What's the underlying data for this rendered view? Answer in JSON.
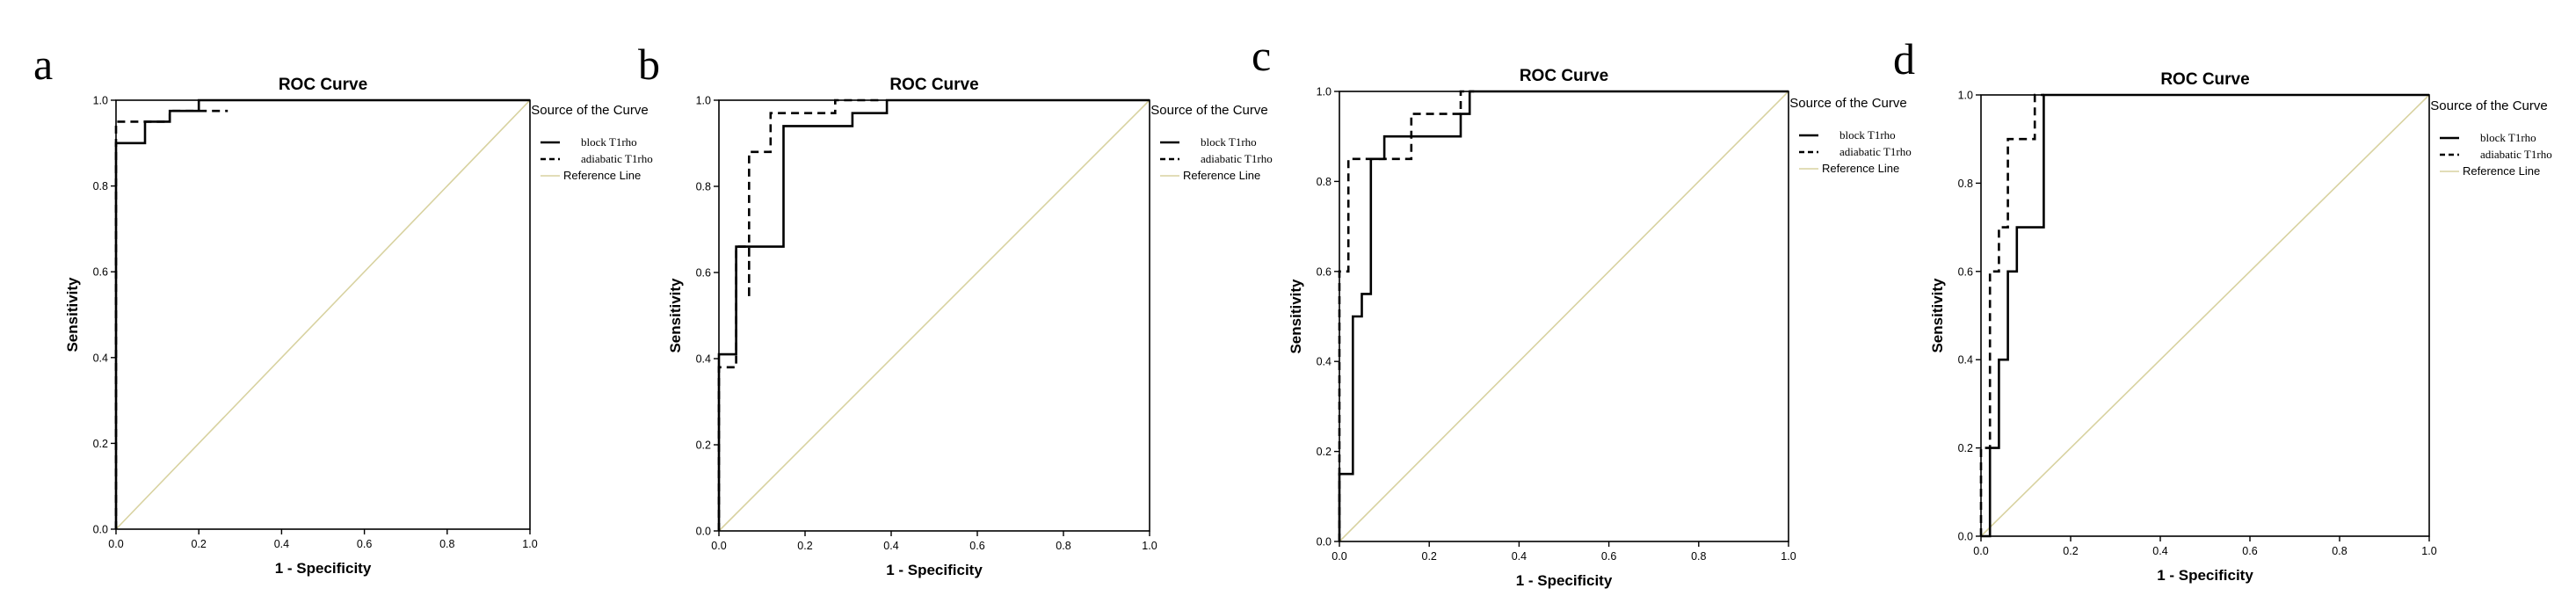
{
  "chart_data": [
    {
      "panel": "a",
      "type": "line",
      "title": "ROC Curve",
      "xlabel": "1 - Specificity",
      "ylabel": "Sensitivity",
      "xlim": [
        0,
        1
      ],
      "ylim": [
        0,
        1
      ],
      "xticks": [
        "0.0",
        "0.2",
        "0.4",
        "0.6",
        "0.8",
        "1.0"
      ],
      "yticks": [
        "0.0",
        "0.2",
        "0.4",
        "0.6",
        "0.8",
        "1.0"
      ],
      "legend": {
        "title": "Source of the Curve",
        "entries": [
          "block T1rho",
          "adiabatic T1rho",
          "Reference Line"
        ],
        "position": "right"
      },
      "series": [
        {
          "name": "block T1rho",
          "style": "solid",
          "points": [
            [
              0,
              0
            ],
            [
              0,
              0.9
            ],
            [
              0.07,
              0.9
            ],
            [
              0.07,
              0.95
            ],
            [
              0.13,
              0.95
            ],
            [
              0.13,
              0.975
            ],
            [
              0.2,
              0.975
            ],
            [
              0.2,
              1.0
            ],
            [
              1.0,
              1.0
            ]
          ]
        },
        {
          "name": "adiabatic T1rho",
          "style": "dashed",
          "points": [
            [
              0,
              0
            ],
            [
              0,
              0.95
            ],
            [
              0.13,
              0.95
            ],
            [
              0.13,
              0.975
            ],
            [
              0.27,
              0.975
            ]
          ]
        },
        {
          "name": "Reference Line",
          "style": "reference",
          "points": [
            [
              0,
              0
            ],
            [
              1,
              1
            ]
          ]
        }
      ]
    },
    {
      "panel": "b",
      "type": "line",
      "title": "ROC Curve",
      "xlabel": "1 - Specificity",
      "ylabel": "Sensitivity",
      "xlim": [
        0,
        1
      ],
      "ylim": [
        0,
        1
      ],
      "xticks": [
        "0.0",
        "0.2",
        "0.4",
        "0.6",
        "0.8",
        "1.0"
      ],
      "yticks": [
        "0.0",
        "0.2",
        "0.4",
        "0.6",
        "0.8",
        "1.0"
      ],
      "legend": {
        "title": "Source of the Curve",
        "entries": [
          "block T1rho",
          "adiabatic T1rho",
          "Reference Line"
        ],
        "position": "right"
      },
      "series": [
        {
          "name": "block T1rho",
          "style": "solid",
          "points": [
            [
              0,
              0
            ],
            [
              0,
              0.41
            ],
            [
              0.04,
              0.41
            ],
            [
              0.04,
              0.66
            ],
            [
              0.15,
              0.66
            ],
            [
              0.15,
              0.94
            ],
            [
              0.31,
              0.94
            ],
            [
              0.31,
              0.97
            ],
            [
              0.39,
              0.97
            ],
            [
              0.39,
              1.0
            ],
            [
              1.0,
              1.0
            ]
          ]
        },
        {
          "name": "adiabatic T1rho",
          "style": "dashed",
          "points": [
            [
              0,
              0
            ],
            [
              0,
              0.38
            ],
            [
              0.04,
              0.38
            ],
            [
              0.04,
              0.66
            ],
            [
              0.07,
              0.66
            ],
            [
              0.07,
              0.54
            ],
            [
              0.07,
              0.88
            ],
            [
              0.12,
              0.88
            ],
            [
              0.12,
              0.97
            ],
            [
              0.27,
              0.97
            ],
            [
              0.27,
              1.0
            ],
            [
              0.38,
              1.0
            ]
          ]
        },
        {
          "name": "Reference Line",
          "style": "reference",
          "points": [
            [
              0,
              0
            ],
            [
              1,
              1
            ]
          ]
        }
      ]
    },
    {
      "panel": "c",
      "type": "line",
      "title": "ROC Curve",
      "xlabel": "1 - Specificity",
      "ylabel": "Sensitivity",
      "xlim": [
        0,
        1
      ],
      "ylim": [
        0,
        1
      ],
      "xticks": [
        "0.0",
        "0.2",
        "0.4",
        "0.6",
        "0.8",
        "1.0"
      ],
      "yticks": [
        "0.0",
        "0.2",
        "0.4",
        "0.6",
        "0.8",
        "1.0"
      ],
      "legend": {
        "title": "Source of the Curve",
        "entries": [
          "block T1rho",
          "adiabatic T1rho",
          "Reference Line"
        ],
        "position": "right"
      },
      "series": [
        {
          "name": "block T1rho",
          "style": "solid",
          "points": [
            [
              0,
              0
            ],
            [
              0,
              0.15
            ],
            [
              0.03,
              0.15
            ],
            [
              0.03,
              0.5
            ],
            [
              0.05,
              0.5
            ],
            [
              0.05,
              0.55
            ],
            [
              0.07,
              0.55
            ],
            [
              0.07,
              0.85
            ],
            [
              0.1,
              0.85
            ],
            [
              0.1,
              0.9
            ],
            [
              0.27,
              0.9
            ],
            [
              0.27,
              0.95
            ],
            [
              0.29,
              0.95
            ],
            [
              0.29,
              1.0
            ],
            [
              1.0,
              1.0
            ]
          ]
        },
        {
          "name": "adiabatic T1rho",
          "style": "dashed",
          "points": [
            [
              0,
              0
            ],
            [
              0,
              0.6
            ],
            [
              0.02,
              0.6
            ],
            [
              0.02,
              0.85
            ],
            [
              0.1,
              0.85
            ],
            [
              0.16,
              0.85
            ],
            [
              0.16,
              0.95
            ],
            [
              0.27,
              0.95
            ],
            [
              0.27,
              1.0
            ],
            [
              0.3,
              1.0
            ]
          ]
        },
        {
          "name": "Reference Line",
          "style": "reference",
          "points": [
            [
              0,
              0
            ],
            [
              1,
              1
            ]
          ]
        }
      ]
    },
    {
      "panel": "d",
      "type": "line",
      "title": "ROC Curve",
      "xlabel": "1 - Specificity",
      "ylabel": "Sensitivity",
      "xlim": [
        0,
        1
      ],
      "ylim": [
        0,
        1
      ],
      "xticks": [
        "0.0",
        "0.2",
        "0.4",
        "0.6",
        "0.8",
        "1.0"
      ],
      "yticks": [
        "0.0",
        "0.2",
        "0.4",
        "0.6",
        "0.8",
        "1.0"
      ],
      "legend": {
        "title": "Source of the Curve",
        "entries": [
          "block T1rho",
          "adiabatic T1rho",
          "Reference Line"
        ],
        "position": "right"
      },
      "series": [
        {
          "name": "block T1rho",
          "style": "solid",
          "points": [
            [
              0,
              0
            ],
            [
              0.02,
              0
            ],
            [
              0.02,
              0.2
            ],
            [
              0.04,
              0.2
            ],
            [
              0.04,
              0.4
            ],
            [
              0.06,
              0.4
            ],
            [
              0.06,
              0.6
            ],
            [
              0.08,
              0.6
            ],
            [
              0.08,
              0.7
            ],
            [
              0.14,
              0.7
            ],
            [
              0.14,
              1.0
            ],
            [
              1.0,
              1.0
            ]
          ]
        },
        {
          "name": "adiabatic T1rho",
          "style": "dashed",
          "points": [
            [
              0,
              0
            ],
            [
              0,
              0.2
            ],
            [
              0.02,
              0.2
            ],
            [
              0.02,
              0.6
            ],
            [
              0.04,
              0.6
            ],
            [
              0.04,
              0.7
            ],
            [
              0.06,
              0.7
            ],
            [
              0.06,
              0.9
            ],
            [
              0.12,
              0.9
            ],
            [
              0.12,
              1.0
            ],
            [
              0.14,
              1.0
            ]
          ]
        },
        {
          "name": "Reference Line",
          "style": "reference",
          "points": [
            [
              0,
              0
            ],
            [
              1,
              1
            ]
          ]
        }
      ]
    }
  ],
  "colors": {
    "curve": "#000000",
    "reference": "#d8d2a0",
    "frame": "#000000"
  }
}
